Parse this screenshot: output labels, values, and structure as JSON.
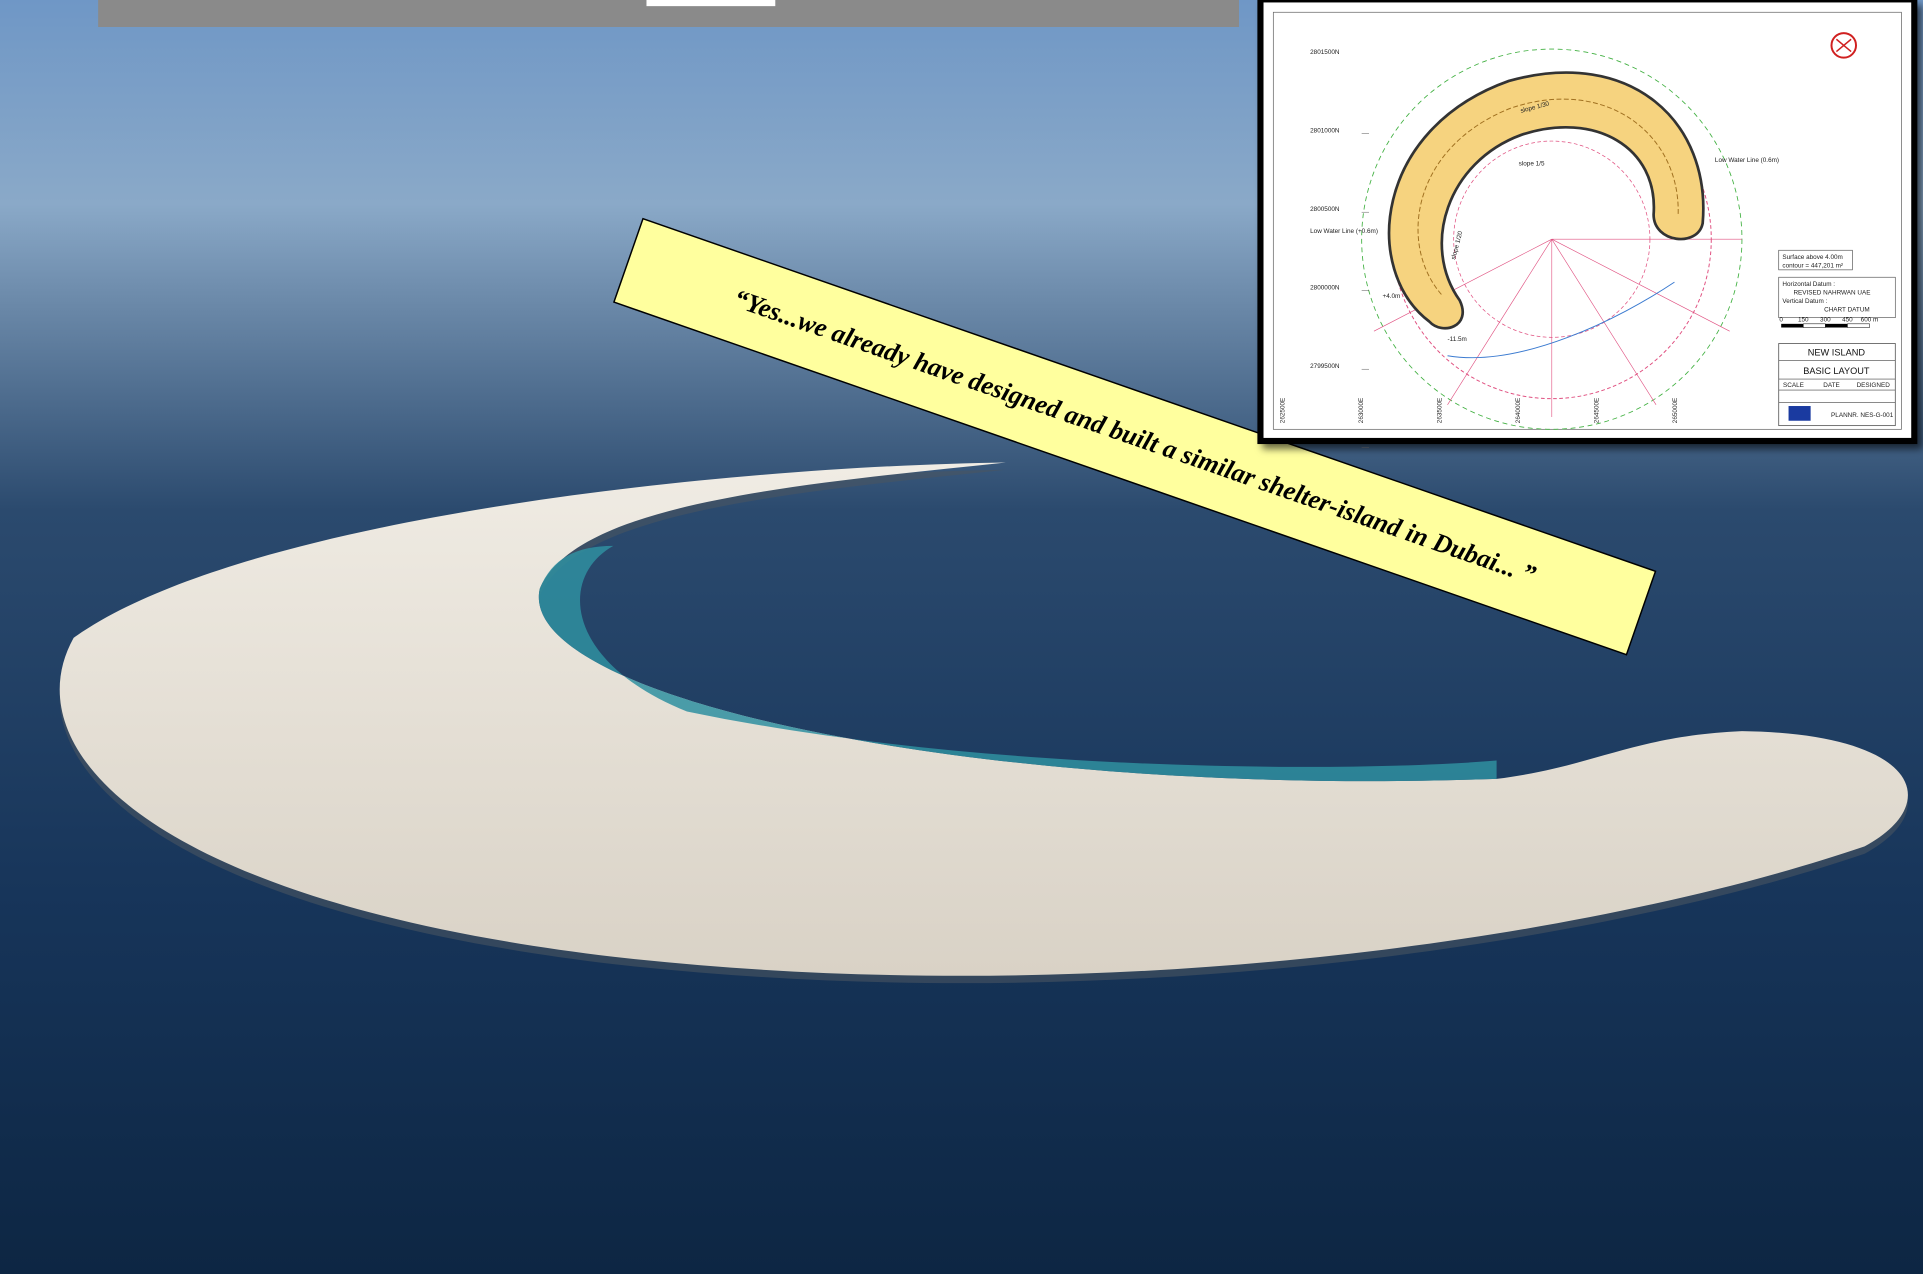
{
  "slide": {
    "quote": "“Yes...we already have designed and built a similar shelter-island in Dubai... ”",
    "drawing": {
      "northings": [
        "2801500N",
        "2801000N",
        "2800500N",
        "2800000N",
        "2799500N"
      ],
      "eastings": [
        "262500E",
        "263000E",
        "263500E",
        "264000E",
        "264500E",
        "265000E"
      ],
      "annotations": [
        "Low Water Line (+0.6m)",
        "Low Water Line (0.6m)",
        "slope 1/20",
        "slope 1/30",
        "slope 1/5",
        "+4.0m",
        "-11.5m"
      ],
      "surface": [
        "Surface above 4.00m",
        "contour = 447,201 m²"
      ],
      "datum": [
        "Horizontal Datum :",
        "REVISED NAHRWAN UAE",
        "Vertical Datum :",
        "CHART DATUM"
      ],
      "scale_bar": [
        "0",
        "150",
        "300",
        "450",
        "600 m"
      ],
      "title_block": {
        "project": "NEW ISLAND",
        "drawing": "BASIC LAYOUT",
        "headers": [
          "SCALE",
          "DATE",
          "DESIGNED"
        ],
        "number": "PLANNR. NES-G-001"
      }
    }
  }
}
